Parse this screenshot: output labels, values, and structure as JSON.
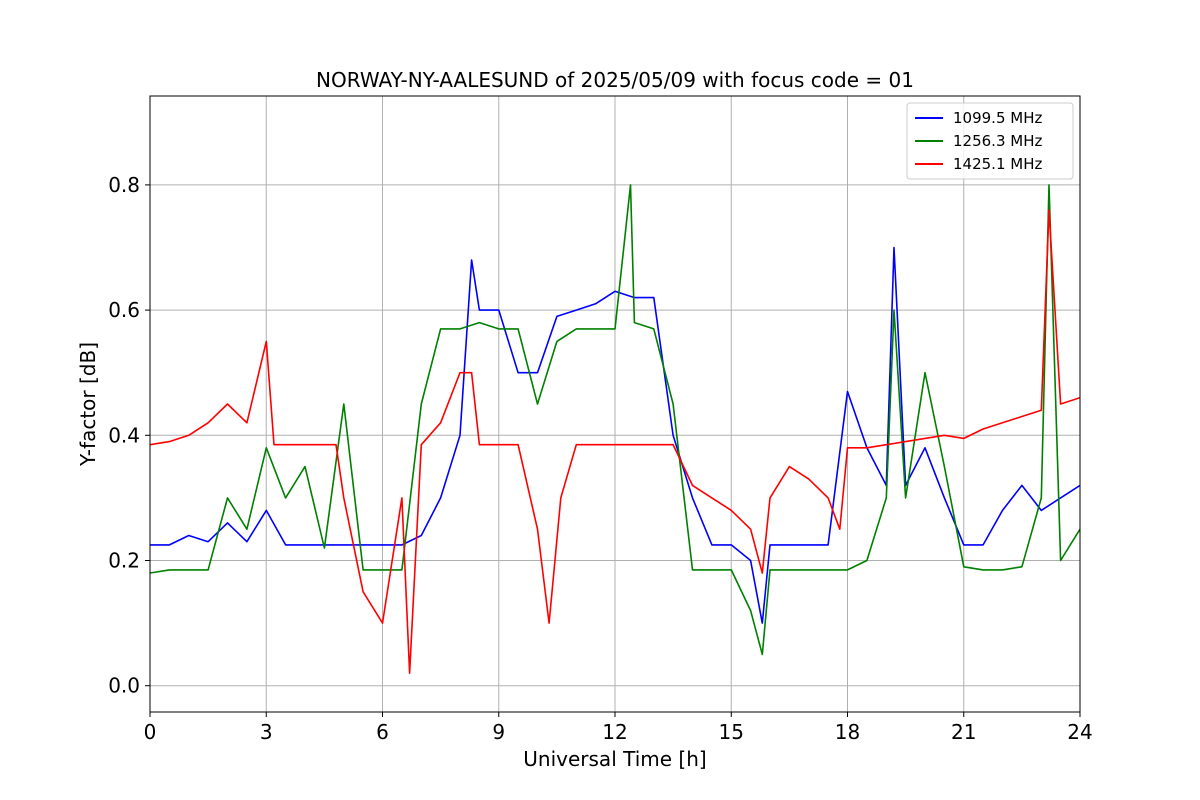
{
  "chart_data": {
    "type": "line",
    "title": "NORWAY-NY-AALESUND of 2025/05/09 with focus code = 01",
    "xlabel": "Universal Time [h]",
    "ylabel": "Y-factor [dB]",
    "xlim": [
      0,
      24
    ],
    "ylim": [
      -0.042,
      0.942
    ],
    "xticks": [
      0,
      3,
      6,
      9,
      12,
      15,
      18,
      21,
      24
    ],
    "yticks": [
      0.0,
      0.2,
      0.4,
      0.6,
      0.8
    ],
    "ytick_labels": [
      "0.0",
      "0.2",
      "0.4",
      "0.6",
      "0.8"
    ],
    "grid": true,
    "legend_position": "top-right",
    "series": [
      {
        "name": "1099.5 MHz",
        "color": "#0000ff",
        "x": [
          0,
          0.5,
          1.0,
          1.5,
          2.0,
          2.5,
          3.0,
          3.5,
          4.0,
          4.5,
          5.0,
          5.5,
          6.0,
          6.5,
          7.0,
          7.5,
          8.0,
          8.3,
          8.5,
          9.0,
          9.5,
          10.0,
          10.5,
          11.0,
          11.5,
          12.0,
          12.5,
          13.0,
          13.5,
          14.0,
          14.5,
          15.0,
          15.5,
          15.8,
          16.0,
          16.5,
          17.0,
          17.5,
          18.0,
          18.5,
          19.0,
          19.2,
          19.5,
          20.0,
          20.5,
          21.0,
          21.5,
          22.0,
          22.5,
          23.0,
          23.5,
          24.0
        ],
        "y": [
          0.225,
          0.225,
          0.24,
          0.23,
          0.26,
          0.23,
          0.28,
          0.225,
          0.225,
          0.225,
          0.225,
          0.225,
          0.225,
          0.225,
          0.24,
          0.3,
          0.4,
          0.68,
          0.6,
          0.6,
          0.5,
          0.5,
          0.59,
          0.6,
          0.61,
          0.63,
          0.62,
          0.62,
          0.4,
          0.3,
          0.225,
          0.225,
          0.2,
          0.1,
          0.225,
          0.225,
          0.225,
          0.225,
          0.47,
          0.38,
          0.32,
          0.7,
          0.32,
          0.38,
          0.3,
          0.225,
          0.225,
          0.28,
          0.32,
          0.28,
          0.3,
          0.32
        ]
      },
      {
        "name": "1256.3 MHz",
        "color": "#008000",
        "x": [
          0,
          0.5,
          1.0,
          1.5,
          2.0,
          2.5,
          3.0,
          3.5,
          4.0,
          4.5,
          5.0,
          5.5,
          6.0,
          6.5,
          7.0,
          7.5,
          8.0,
          8.5,
          9.0,
          9.5,
          10.0,
          10.5,
          11.0,
          11.5,
          12.0,
          12.4,
          12.5,
          13.0,
          13.5,
          14.0,
          14.5,
          15.0,
          15.5,
          15.8,
          16.0,
          16.5,
          17.0,
          17.5,
          18.0,
          18.5,
          19.0,
          19.2,
          19.5,
          20.0,
          20.5,
          21.0,
          21.5,
          22.0,
          22.5,
          23.0,
          23.2,
          23.5,
          24.0
        ],
        "y": [
          0.18,
          0.185,
          0.185,
          0.185,
          0.3,
          0.25,
          0.38,
          0.3,
          0.35,
          0.22,
          0.45,
          0.185,
          0.185,
          0.185,
          0.45,
          0.57,
          0.57,
          0.58,
          0.57,
          0.57,
          0.45,
          0.55,
          0.57,
          0.57,
          0.57,
          0.8,
          0.58,
          0.57,
          0.45,
          0.185,
          0.185,
          0.185,
          0.12,
          0.05,
          0.185,
          0.185,
          0.185,
          0.185,
          0.185,
          0.2,
          0.3,
          0.6,
          0.3,
          0.5,
          0.35,
          0.19,
          0.185,
          0.185,
          0.19,
          0.3,
          0.8,
          0.2,
          0.25
        ]
      },
      {
        "name": "1425.1 MHz",
        "color": "#ff0000",
        "x": [
          0,
          0.5,
          1.0,
          1.5,
          2.0,
          2.5,
          3.0,
          3.2,
          3.5,
          4.0,
          4.5,
          4.8,
          5.0,
          5.5,
          6.0,
          6.5,
          6.7,
          7.0,
          7.5,
          8.0,
          8.3,
          8.5,
          9.0,
          9.5,
          10.0,
          10.3,
          10.6,
          11.0,
          11.5,
          12.0,
          12.5,
          13.0,
          13.5,
          14.0,
          14.5,
          15.0,
          15.5,
          15.8,
          16.0,
          16.5,
          17.0,
          17.5,
          17.8,
          18.0,
          18.5,
          19.0,
          19.5,
          20.0,
          20.5,
          21.0,
          21.5,
          22.0,
          22.5,
          23.0,
          23.2,
          23.5,
          24.0
        ],
        "y": [
          0.385,
          0.39,
          0.4,
          0.42,
          0.45,
          0.42,
          0.55,
          0.385,
          0.385,
          0.385,
          0.385,
          0.385,
          0.3,
          0.15,
          0.1,
          0.3,
          0.02,
          0.385,
          0.42,
          0.5,
          0.5,
          0.385,
          0.385,
          0.385,
          0.25,
          0.1,
          0.3,
          0.385,
          0.385,
          0.385,
          0.385,
          0.385,
          0.385,
          0.32,
          0.3,
          0.28,
          0.25,
          0.18,
          0.3,
          0.35,
          0.33,
          0.3,
          0.25,
          0.38,
          0.38,
          0.385,
          0.39,
          0.395,
          0.4,
          0.395,
          0.41,
          0.42,
          0.43,
          0.44,
          0.76,
          0.45,
          0.46
        ]
      }
    ]
  }
}
